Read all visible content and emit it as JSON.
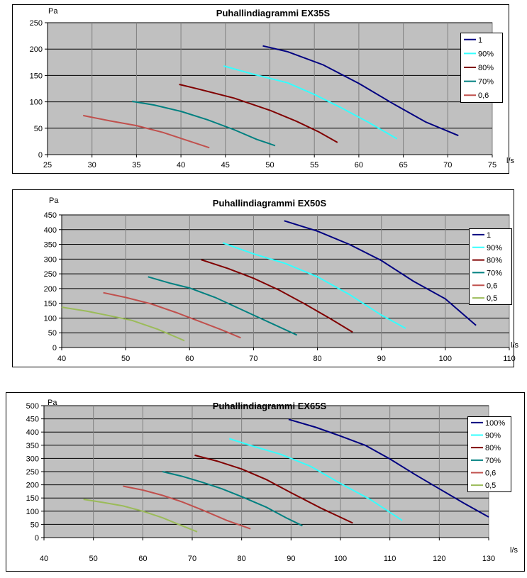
{
  "chart_data": [
    {
      "type": "line",
      "title": "Puhallindiagrammi EX35S",
      "ylabel": "Pa",
      "xlabel": "l/s",
      "xlim": [
        25,
        75
      ],
      "ylim": [
        0,
        250
      ],
      "xticks": [
        25,
        30,
        35,
        40,
        45,
        50,
        55,
        60,
        65,
        70,
        75
      ],
      "yticks": [
        0,
        50,
        100,
        150,
        200,
        250
      ],
      "grid": true,
      "legend_position": "right",
      "series": [
        {
          "name": "1",
          "color": "#000080",
          "points": [
            [
              49.2,
              206
            ],
            [
              52,
              195
            ],
            [
              56,
              170
            ],
            [
              60,
              135
            ],
            [
              64,
              95
            ],
            [
              67.5,
              62
            ],
            [
              71.2,
              36
            ]
          ]
        },
        {
          "name": "90%",
          "color": "#33ffff",
          "points": [
            [
              44.8,
              168
            ],
            [
              48,
              153
            ],
            [
              52,
              136
            ],
            [
              55,
              114
            ],
            [
              58,
              89
            ],
            [
              61,
              62
            ],
            [
              64.3,
              30
            ]
          ]
        },
        {
          "name": "80%",
          "color": "#800000",
          "points": [
            [
              39.8,
              133
            ],
            [
              42,
              124
            ],
            [
              46,
              107
            ],
            [
              50,
              84
            ],
            [
              53,
              63
            ],
            [
              55.5,
              43
            ],
            [
              57.6,
              23
            ]
          ]
        },
        {
          "name": "70%",
          "color": "#008080",
          "points": [
            [
              34.5,
              101
            ],
            [
              37,
              94
            ],
            [
              40,
              82
            ],
            [
              43,
              66
            ],
            [
              46,
              47
            ],
            [
              48.5,
              29
            ],
            [
              50.6,
              17
            ]
          ]
        },
        {
          "name": "0,6",
          "color": "#c0504d",
          "points": [
            [
              29,
              74
            ],
            [
              32,
              64
            ],
            [
              35,
              55
            ],
            [
              38,
              42
            ],
            [
              40.5,
              28
            ],
            [
              43.2,
              13
            ]
          ]
        }
      ]
    },
    {
      "type": "line",
      "title": "Puhallindiagrammi EX50S",
      "ylabel": "Pa",
      "xlabel": "l/s",
      "xlim": [
        40,
        110
      ],
      "ylim": [
        0,
        450
      ],
      "xticks": [
        40,
        50,
        60,
        70,
        80,
        90,
        100,
        110
      ],
      "yticks": [
        0,
        50,
        100,
        150,
        200,
        250,
        300,
        350,
        400,
        450
      ],
      "grid": true,
      "legend_position": "right",
      "series": [
        {
          "name": "1",
          "color": "#000080",
          "points": [
            [
              74.8,
              430
            ],
            [
              80,
              395
            ],
            [
              85,
              350
            ],
            [
              90,
              295
            ],
            [
              95,
              225
            ],
            [
              100,
              165
            ],
            [
              104.8,
              75
            ]
          ]
        },
        {
          "name": "90%",
          "color": "#33ffff",
          "points": [
            [
              65.2,
              355
            ],
            [
              70,
              318
            ],
            [
              75,
              285
            ],
            [
              80,
              240
            ],
            [
              85,
              180
            ],
            [
              90,
              110
            ],
            [
              93.8,
              65
            ]
          ]
        },
        {
          "name": "80%",
          "color": "#800000",
          "points": [
            [
              61.8,
              298
            ],
            [
              66,
              268
            ],
            [
              70,
              235
            ],
            [
              74,
              195
            ],
            [
              78,
              148
            ],
            [
              82,
              98
            ],
            [
              85.5,
              52
            ]
          ]
        },
        {
          "name": "70%",
          "color": "#008080",
          "points": [
            [
              53.5,
              240
            ],
            [
              57,
              218
            ],
            [
              60,
              202
            ],
            [
              64,
              170
            ],
            [
              68,
              130
            ],
            [
              72,
              90
            ],
            [
              76.8,
              42
            ]
          ]
        },
        {
          "name": "0,6",
          "color": "#c0504d",
          "points": [
            [
              46.5,
              186
            ],
            [
              50,
              170
            ],
            [
              54,
              148
            ],
            [
              58,
              118
            ],
            [
              62,
              85
            ],
            [
              65,
              60
            ],
            [
              68,
              33
            ]
          ]
        },
        {
          "name": "0,5",
          "color": "#9bbb59",
          "points": [
            [
              40,
              137
            ],
            [
              44,
              123
            ],
            [
              47,
              110
            ],
            [
              51,
              92
            ],
            [
              55,
              62
            ],
            [
              59.2,
              23
            ]
          ]
        }
      ]
    },
    {
      "type": "line",
      "title": "Puhallindiagrammi EX65S",
      "ylabel": "Pa",
      "xlabel": "l/s",
      "xlim": [
        40,
        130
      ],
      "ylim": [
        0,
        500
      ],
      "xticks": [
        40,
        50,
        60,
        70,
        80,
        90,
        100,
        110,
        120,
        130
      ],
      "yticks": [
        0,
        50,
        100,
        150,
        200,
        250,
        300,
        350,
        400,
        450,
        500
      ],
      "grid": true,
      "legend_position": "right",
      "series": [
        {
          "name": "100%",
          "color": "#000080",
          "points": [
            [
              89.5,
              448
            ],
            [
              95,
              418
            ],
            [
              100,
              385
            ],
            [
              105,
              350
            ],
            [
              110,
              298
            ],
            [
              115,
              240
            ],
            [
              120,
              185
            ],
            [
              125,
              130
            ],
            [
              130,
              78
            ]
          ]
        },
        {
          "name": "90%",
          "color": "#33ffff",
          "points": [
            [
              77.5,
              375
            ],
            [
              82,
              348
            ],
            [
              88,
              315
            ],
            [
              94,
              270
            ],
            [
              100,
              205
            ],
            [
              106,
              145
            ],
            [
              112.5,
              65
            ]
          ]
        },
        {
          "name": "80%",
          "color": "#800000",
          "points": [
            [
              70.5,
              312
            ],
            [
              75,
              290
            ],
            [
              80,
              260
            ],
            [
              85,
              220
            ],
            [
              90,
              170
            ],
            [
              96,
              112
            ],
            [
              102.5,
              55
            ]
          ]
        },
        {
          "name": "70%",
          "color": "#008080",
          "points": [
            [
              64,
              250
            ],
            [
              68,
              232
            ],
            [
              72,
              210
            ],
            [
              76,
              185
            ],
            [
              80,
              155
            ],
            [
              85,
              115
            ],
            [
              89,
              75
            ],
            [
              92.3,
              45
            ]
          ]
        },
        {
          "name": "0,6",
          "color": "#c0504d",
          "points": [
            [
              56,
              195
            ],
            [
              60,
              180
            ],
            [
              64,
              160
            ],
            [
              68,
              135
            ],
            [
              72,
              105
            ],
            [
              77,
              65
            ],
            [
              81.8,
              33
            ]
          ]
        },
        {
          "name": "0,5",
          "color": "#9bbb59",
          "points": [
            [
              48,
              145
            ],
            [
              52,
              133
            ],
            [
              56,
              120
            ],
            [
              60,
              100
            ],
            [
              64,
              75
            ],
            [
              67,
              52
            ],
            [
              71,
              22
            ]
          ]
        }
      ]
    }
  ]
}
